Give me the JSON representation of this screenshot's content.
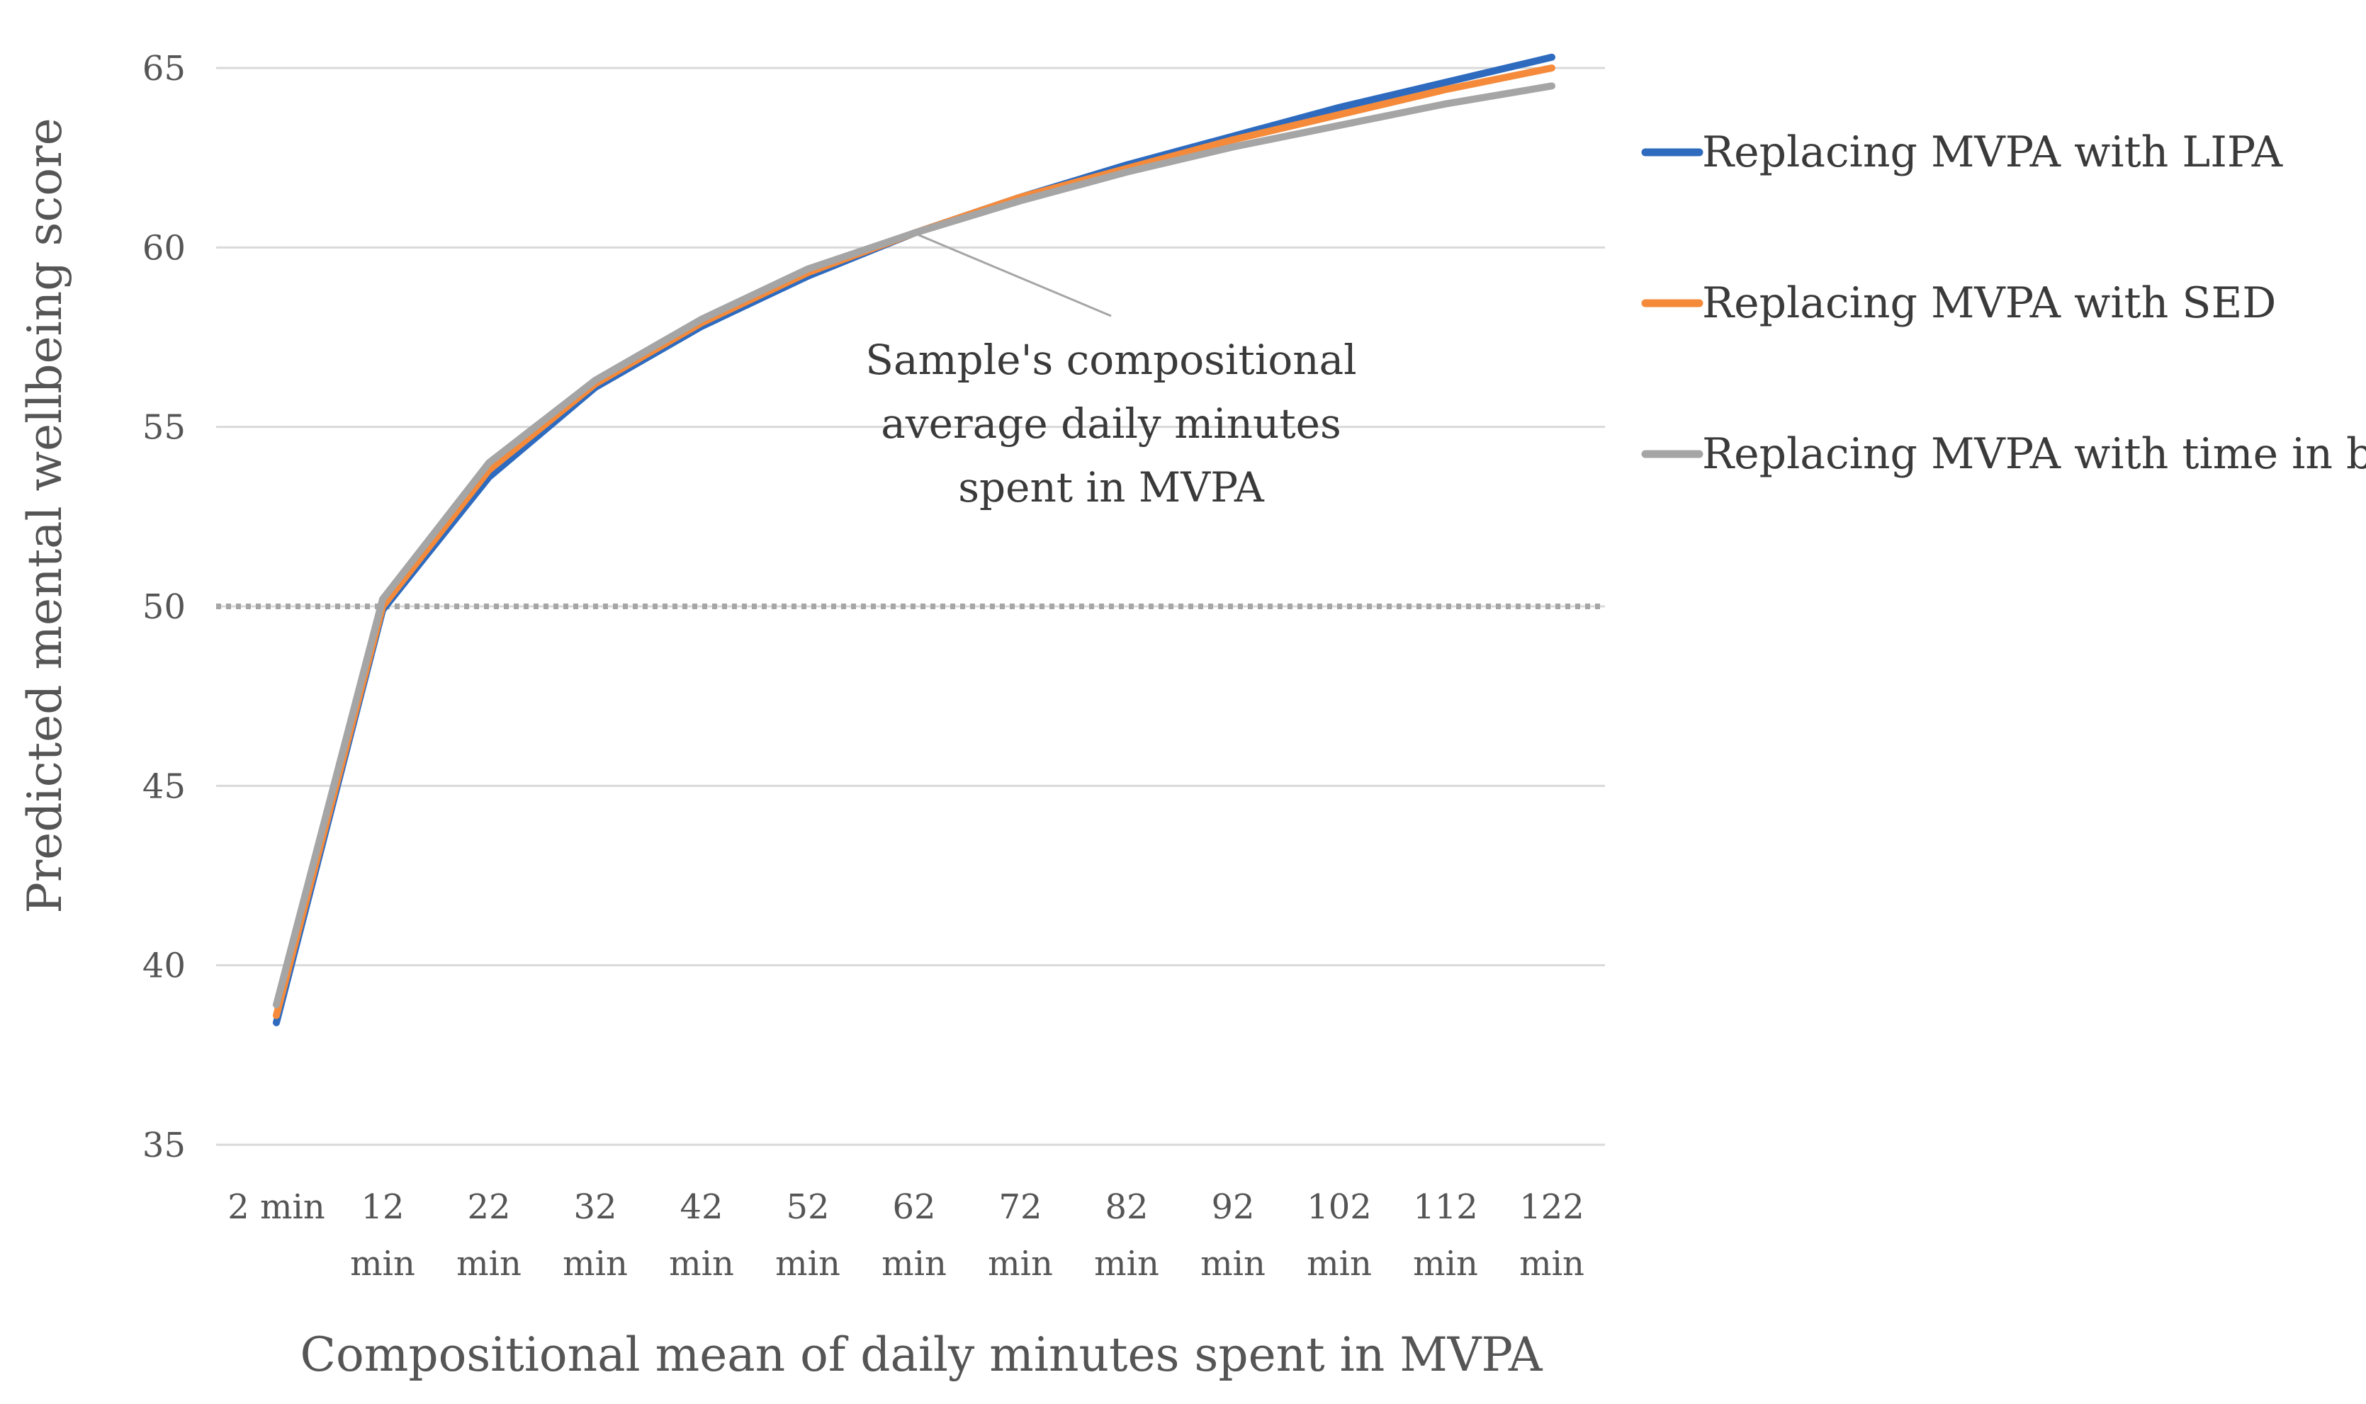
{
  "chart_data": {
    "type": "line",
    "title": "",
    "xlabel": "Compositional mean of daily minutes spent in MVPA",
    "ylabel": "Predicted mental wellbeing score",
    "ylim": [
      35,
      65
    ],
    "yticks": [
      35,
      40,
      45,
      50,
      55,
      60,
      65
    ],
    "grid": true,
    "legend_position": "right",
    "categories": [
      [
        "2 min"
      ],
      [
        "12",
        "min"
      ],
      [
        "22",
        "min"
      ],
      [
        "32",
        "min"
      ],
      [
        "42",
        "min"
      ],
      [
        "52",
        "min"
      ],
      [
        "62",
        "min"
      ],
      [
        "72",
        "min"
      ],
      [
        "82",
        "min"
      ],
      [
        "92",
        "min"
      ],
      [
        "102",
        "min"
      ],
      [
        "112",
        "min"
      ],
      [
        "122",
        "min"
      ]
    ],
    "reference_line": {
      "y": 50,
      "style": "dotted",
      "color": "#a6a6a6"
    },
    "series": [
      {
        "name": "Replacing MVPA with LIPA",
        "color": "#2e6bbf",
        "values": [
          38.4,
          49.9,
          53.6,
          56.1,
          57.8,
          59.2,
          60.4,
          61.4,
          62.3,
          63.1,
          63.9,
          64.6,
          65.3
        ]
      },
      {
        "name": "Replacing MVPA with SED",
        "color": "#f58a3a",
        "values": [
          38.6,
          50.0,
          53.8,
          56.2,
          57.9,
          59.3,
          60.4,
          61.4,
          62.2,
          63.0,
          63.7,
          64.4,
          65.0
        ]
      },
      {
        "name": "Replacing MVPA with time in bed",
        "color": "#a5a5a5",
        "values": [
          38.9,
          50.2,
          54.0,
          56.3,
          58.0,
          59.4,
          60.4,
          61.3,
          62.1,
          62.8,
          63.4,
          64.0,
          64.5
        ]
      }
    ],
    "annotation": {
      "lines": [
        "Sample's compositional",
        "average daily minutes",
        "spent in MVPA"
      ],
      "points_to_category_index": 6,
      "points_to_value": 60.4
    }
  }
}
